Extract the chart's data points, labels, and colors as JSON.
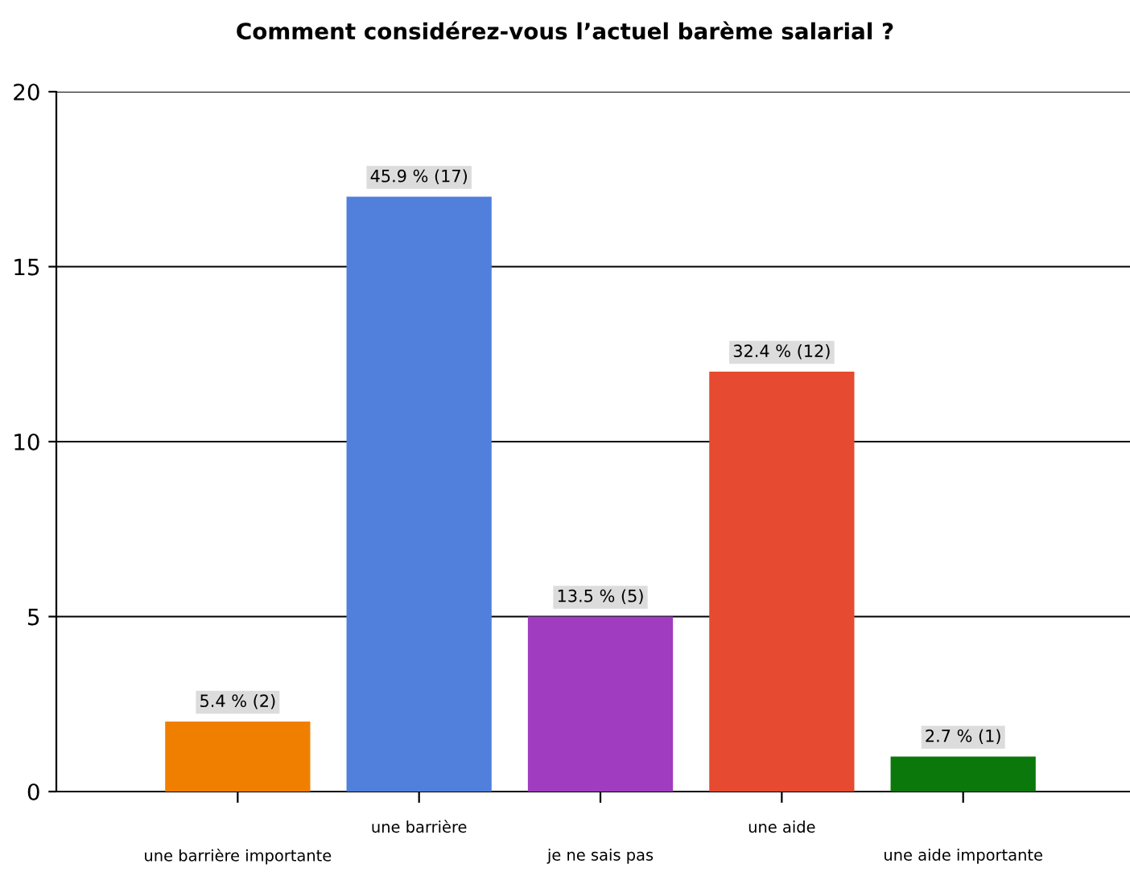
{
  "chart_data": {
    "type": "bar",
    "title": "Comment considérez-vous l’actuel barème salarial ?",
    "categories": [
      "une barrière importante",
      "une barrière",
      "je ne sais pas",
      "une aide",
      "une aide importante"
    ],
    "values": [
      2,
      17,
      5,
      12,
      1
    ],
    "colors": [
      "#f07f00",
      "#5080dc",
      "#a03cc0",
      "#e64a30",
      "#0a780a"
    ],
    "value_labels": [
      "5.4 % (2)",
      "45.9 % (17)",
      "13.5 % (5)",
      "32.4 % (12)",
      "2.7 % (1)"
    ],
    "ylim": [
      0,
      20
    ],
    "yticks": [
      0,
      5,
      10,
      15,
      20
    ],
    "grid": "y",
    "legend": false
  }
}
